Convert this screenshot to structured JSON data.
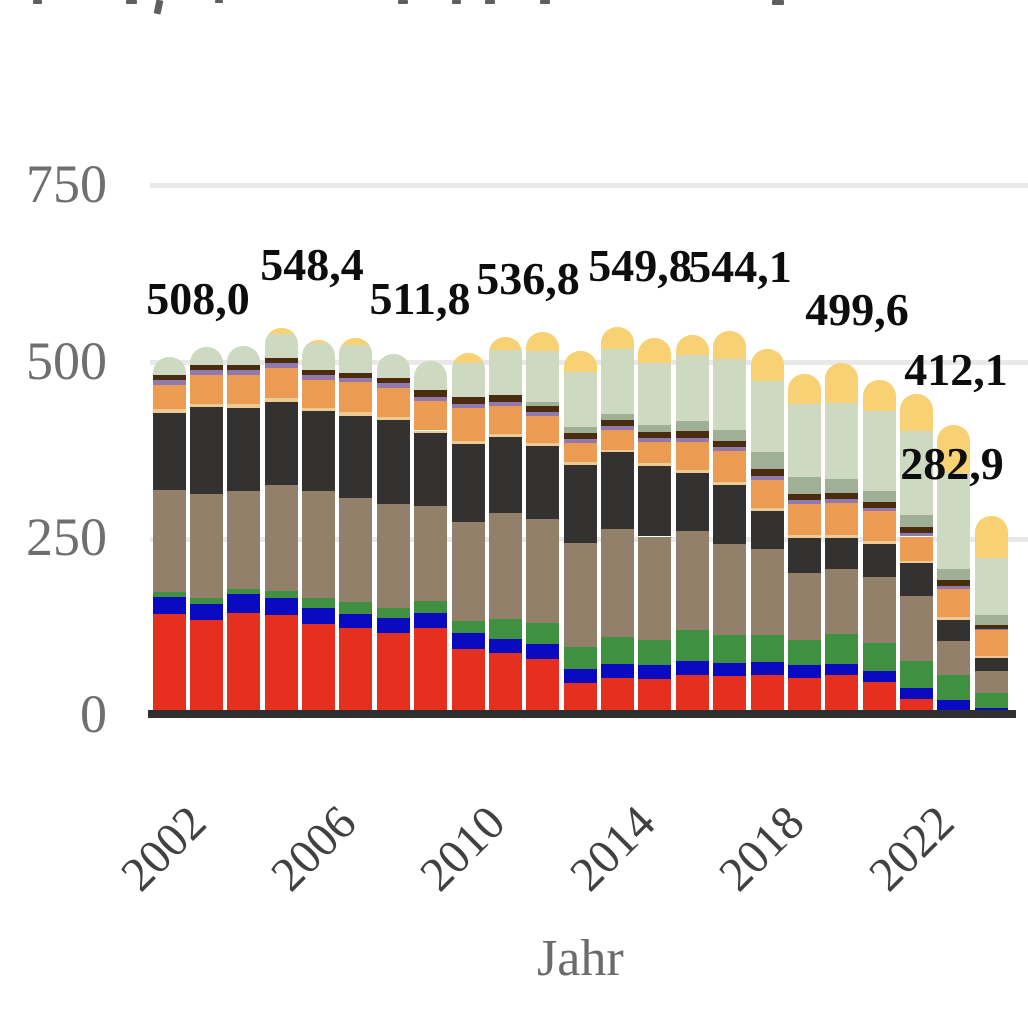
{
  "clipped_title": {
    "note_visible_fragments_only": true,
    "fragments": [
      {
        "x": 33,
        "w": 9,
        "h": 4,
        "r": 0
      },
      {
        "x": 126,
        "w": 11,
        "h": 4,
        "r": 0
      },
      {
        "x": 155,
        "w": 7,
        "h": 14,
        "r": 12
      },
      {
        "x": 215,
        "w": 8,
        "h": 3,
        "r": 0
      },
      {
        "x": 398,
        "w": 10,
        "h": 4,
        "r": 0
      },
      {
        "x": 452,
        "w": 9,
        "h": 4,
        "r": 0
      },
      {
        "x": 485,
        "w": 10,
        "h": 4,
        "r": 0
      },
      {
        "x": 540,
        "w": 10,
        "h": 4,
        "r": 0
      },
      {
        "x": 772,
        "w": 12,
        "h": 5,
        "r": 0
      }
    ]
  },
  "chart_data": {
    "type": "bar",
    "stacked": true,
    "grid": true,
    "legend": "none",
    "xlabel": "Jahr",
    "ylim": [
      0,
      750
    ],
    "yticks": [
      0,
      250,
      500,
      750
    ],
    "ytick_labels": [
      "0",
      "250",
      "500",
      "750"
    ],
    "xtick_years": [
      2002,
      2006,
      2010,
      2014,
      2018,
      2022
    ],
    "x": [
      2002,
      2003,
      2004,
      2005,
      2006,
      2007,
      2008,
      2009,
      2010,
      2011,
      2012,
      2013,
      2014,
      2015,
      2016,
      2017,
      2018,
      2019,
      2020,
      2021,
      2022,
      2023,
      2024
    ],
    "series": [
      {
        "name": "series-red",
        "color": "#e5301f",
        "values": [
          144,
          136,
          146,
          143,
          130,
          125,
          117.8,
          125,
          95,
          89,
          81,
          46,
          54,
          52,
          58,
          56,
          58,
          54,
          58,
          48,
          24,
          8,
          2
        ]
      },
      {
        "name": "series-blue",
        "color": "#0a0ac0",
        "values": [
          25,
          23,
          27,
          24,
          23,
          20,
          21,
          21,
          22,
          20,
          21,
          21,
          20,
          20,
          20,
          19,
          18,
          18,
          16,
          16,
          16,
          14,
          10
        ]
      },
      {
        "name": "series-green",
        "color": "#3f9040",
        "values": [
          7,
          8,
          7,
          10,
          14,
          16,
          14,
          17,
          18,
          28,
          30,
          31,
          38,
          36,
          44,
          40,
          38,
          36,
          42,
          40,
          38,
          36,
          20
        ]
      },
      {
        "name": "series-taupe",
        "color": "#93806a",
        "values": [
          144,
          147,
          139,
          150,
          151,
          147,
          147,
          134,
          140,
          150,
          147,
          147,
          153,
          146,
          140,
          128,
          122,
          94,
          92,
          92,
          92,
          48,
          32
        ]
      },
      {
        "name": "series-darkgray",
        "color": "#343230",
        "values": [
          109,
          123,
          117,
          118,
          113,
          117,
          119,
          103,
          110,
          108,
          103,
          110,
          108,
          100,
          82,
          84,
          54,
          50,
          44,
          48,
          46,
          30,
          18
        ]
      },
      {
        "name": "series-peach",
        "color": "#ecca94",
        "values": [
          6,
          5,
          5,
          5,
          5,
          5,
          5,
          4,
          4,
          4,
          4,
          4,
          4,
          4,
          4,
          4,
          4,
          4,
          4,
          4,
          4,
          4,
          3
        ]
      },
      {
        "name": "series-orange",
        "color": "#ec9b52",
        "values": [
          33,
          41,
          42,
          43,
          40,
          42,
          41,
          42,
          47,
          40,
          38,
          28,
          28,
          30,
          40,
          44,
          40,
          44,
          46,
          42,
          34,
          40,
          36
        ]
      },
      {
        "name": "series-lavender",
        "color": "#9279ad",
        "values": [
          7,
          6,
          6,
          6,
          6,
          6,
          6,
          6,
          6,
          6,
          6,
          5,
          5,
          5,
          6,
          5,
          5,
          5,
          5,
          5,
          5,
          4,
          2
        ]
      },
      {
        "name": "series-darkbrown",
        "color": "#4a2d0f",
        "values": [
          8,
          8,
          8,
          8,
          8,
          8,
          8,
          10,
          9,
          9,
          9,
          9,
          9,
          9,
          9,
          9,
          11,
          9,
          8,
          8,
          8,
          8,
          6
        ]
      },
      {
        "name": "series-graysage",
        "color": "#9fb096",
        "values": [
          0,
          0,
          0,
          0,
          0,
          0,
          0,
          0,
          0,
          0,
          6,
          8,
          8,
          10,
          14,
          16,
          24,
          24,
          20,
          16,
          18,
          16,
          14
        ]
      },
      {
        "name": "series-sage",
        "color": "#cdd9c1",
        "values": [
          25,
          25,
          26,
          34,
          38,
          39,
          33,
          40,
          48,
          64,
          72,
          78,
          92,
          88,
          94,
          100,
          100,
          104,
          108,
          112,
          118,
          136,
          80
        ]
      },
      {
        "name": "series-yellow",
        "color": "#f7d173",
        "values": [
          0,
          0,
          0,
          7.4,
          4,
          10,
          0,
          0,
          14,
          18.8,
          26,
          30,
          30.8,
          35,
          28,
          39.1,
          45,
          42,
          56.6,
          44,
          52,
          68.1,
          59.9
        ]
      }
    ],
    "annotations": [
      {
        "text": "508,0",
        "value": 508.0,
        "year": 2002,
        "x": 198,
        "y": 299
      },
      {
        "text": "548,4",
        "value": 548.4,
        "year": 2005,
        "x": 312,
        "y": 265
      },
      {
        "text": "511,8",
        "value": 511.8,
        "year": 2008,
        "x": 420,
        "y": 299
      },
      {
        "text": "536,8",
        "value": 536.8,
        "year": 2011,
        "x": 528,
        "y": 279
      },
      {
        "text": "549,8",
        "value": 549.8,
        "year": 2014,
        "x": 640,
        "y": 266
      },
      {
        "text": "544,1",
        "value": 544.1,
        "year": 2017,
        "x": 740,
        "y": 267
      },
      {
        "text": "499,6",
        "value": 499.6,
        "year": 2020,
        "x": 857,
        "y": 310
      },
      {
        "text": "412,1",
        "value": 412.1,
        "year": 2023,
        "x": 956,
        "y": 370
      },
      {
        "text": "282,9",
        "value": 282.9,
        "year": 2024,
        "x": 952,
        "y": 464
      }
    ]
  }
}
